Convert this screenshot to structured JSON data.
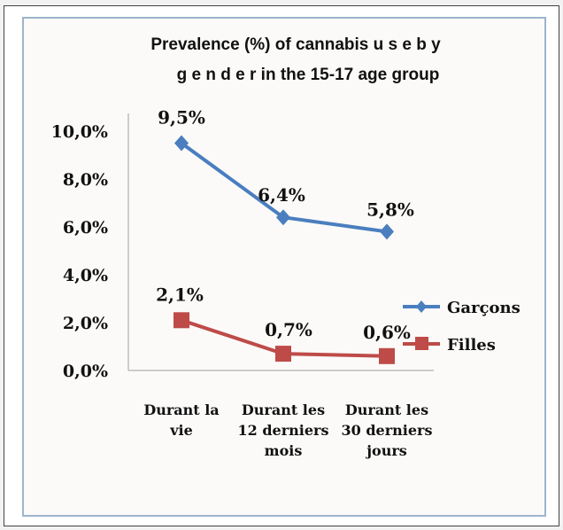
{
  "chart_data": {
    "type": "line",
    "title_lines": [
      "Prevalence (%) of cannabis u s e  b y",
      "g e n d e r  in the 15-17 age group"
    ],
    "categories": [
      [
        "Durant la",
        "vie"
      ],
      [
        "Durant les",
        "12 derniers",
        "mois"
      ],
      [
        "Durant les",
        "30 derniers",
        "jours"
      ]
    ],
    "y_ticks": [
      "0,0%",
      "2,0%",
      "4,0%",
      "6,0%",
      "8,0%",
      "10,0%"
    ],
    "ylim": [
      0,
      10
    ],
    "legend_position": "right",
    "series": [
      {
        "name": "Garçons",
        "values": [
          9.5,
          6.4,
          5.8
        ],
        "labels": [
          "9,5%",
          "6,4%",
          "5,8%"
        ],
        "color": "#4a7ebf",
        "marker": "diamond"
      },
      {
        "name": "Filles",
        "values": [
          2.1,
          0.7,
          0.6
        ],
        "labels": [
          "2,1%",
          "0,7%",
          "0,6%"
        ],
        "color": "#be4b48",
        "marker": "square"
      }
    ]
  }
}
